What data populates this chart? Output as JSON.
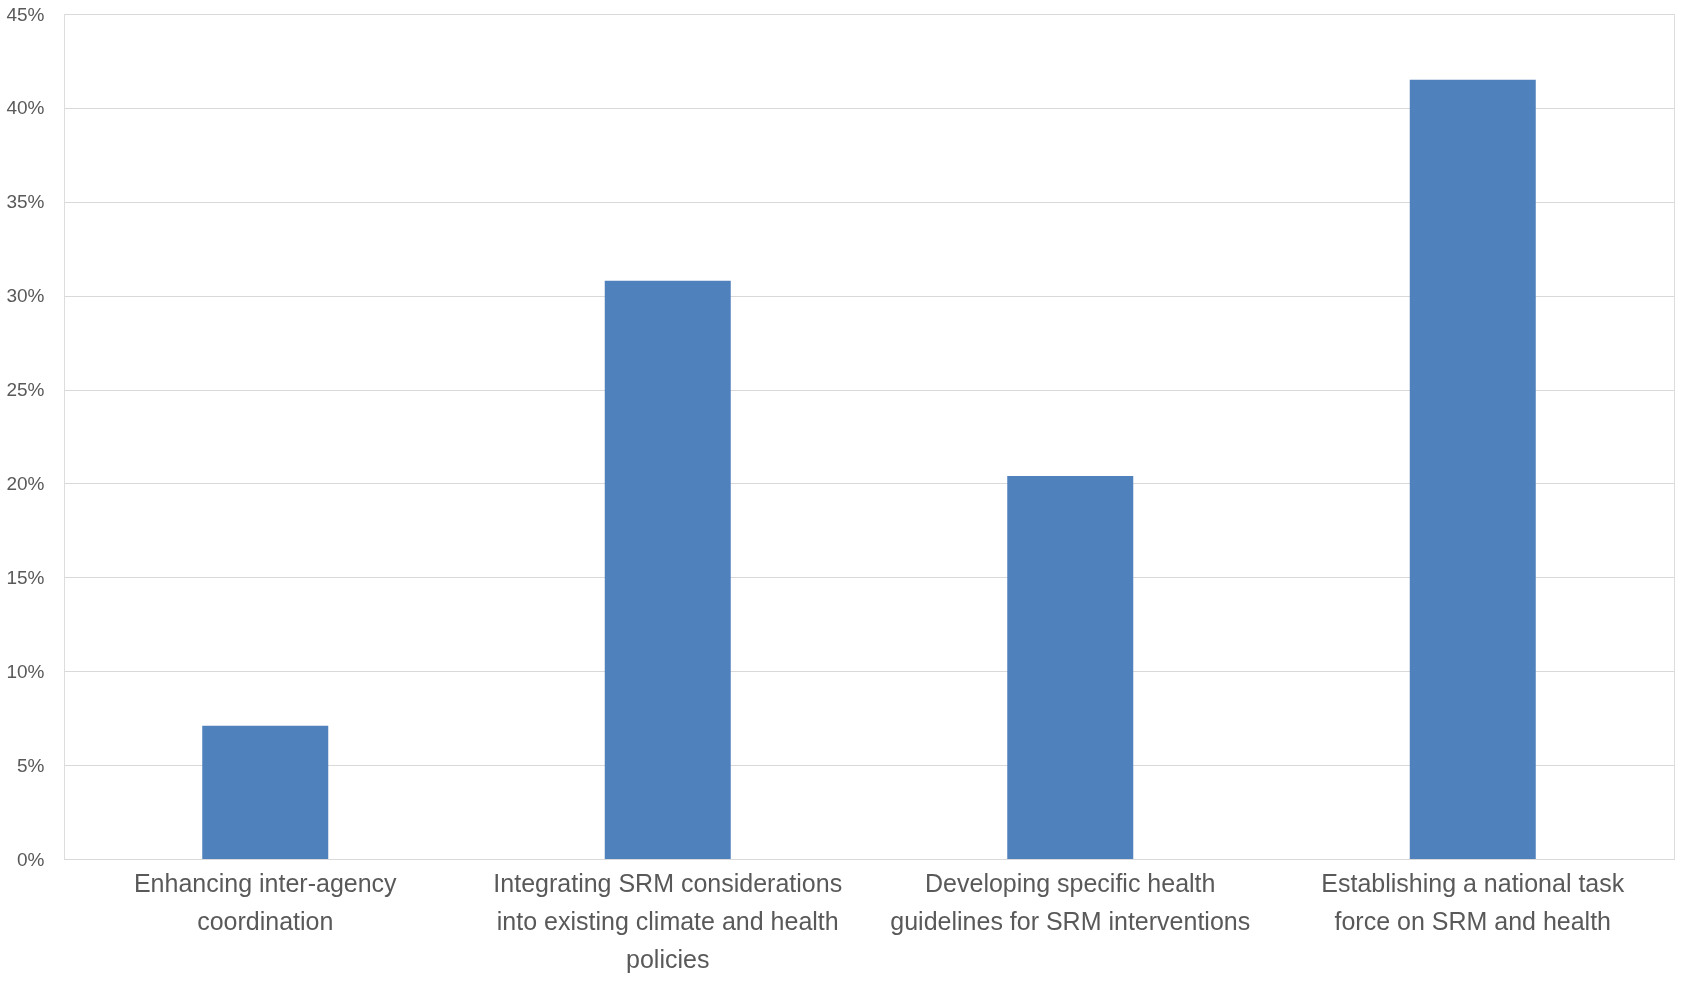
{
  "chart_data": {
    "type": "bar",
    "categories": [
      "Enhancing inter-agency coordination",
      "Integrating SRM considerations into existing climate and health policies",
      "Developing specific health guidelines for SRM interventions",
      "Establishing a national task force on SRM and health"
    ],
    "values": [
      7.1,
      30.8,
      20.4,
      41.5
    ],
    "color": "#4f81bd",
    "ylim": [
      0,
      45
    ],
    "yticks": [
      {
        "value": 0,
        "label": "0%"
      },
      {
        "value": 5,
        "label": "5%"
      },
      {
        "value": 10,
        "label": "10%"
      },
      {
        "value": 15,
        "label": "15%"
      },
      {
        "value": 20,
        "label": "20%"
      },
      {
        "value": 25,
        "label": "25%"
      },
      {
        "value": 30,
        "label": "30%"
      },
      {
        "value": 35,
        "label": "35%"
      },
      {
        "value": 40,
        "label": "40%"
      },
      {
        "value": 45,
        "label": "45%"
      }
    ],
    "grid": "y"
  }
}
